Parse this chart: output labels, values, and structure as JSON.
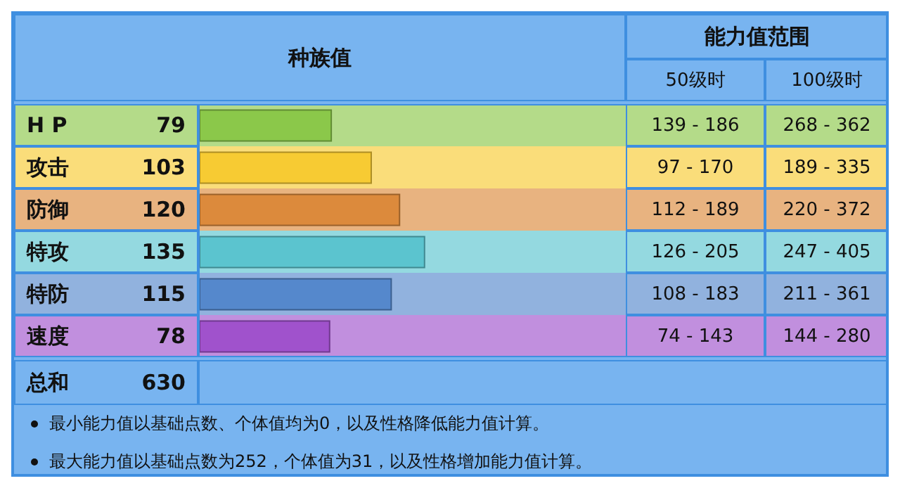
{
  "chart_data": {
    "type": "bar",
    "orientation": "horizontal",
    "title": "种族值",
    "categories": [
      "H P",
      "攻击",
      "防御",
      "特攻",
      "特防",
      "速度"
    ],
    "values": [
      79,
      103,
      120,
      135,
      115,
      78
    ],
    "colors": [
      "#8bc84a",
      "#f7cb33",
      "#dc8a3c",
      "#5bc4cf",
      "#5588cc",
      "#a052cc"
    ],
    "xlim": [
      0,
      255
    ],
    "data_labels": true,
    "annotations": [
      "能力值范围",
      "50级时",
      "100级时",
      "139 - 186",
      "268 - 362",
      "97 - 170",
      "189 - 335",
      "112 - 189",
      "220 - 372",
      "126 - 205",
      "247 - 405",
      "108 - 183",
      "211 - 361",
      "74 - 143",
      "144 - 280",
      "总和",
      "630",
      "最小能力值以基础点数、个体值均为0，以及性格降低能力值计算。",
      "最大能力值以基础点数为252，个体值为31，以及性格增加能力值计算。"
    ]
  }
}
